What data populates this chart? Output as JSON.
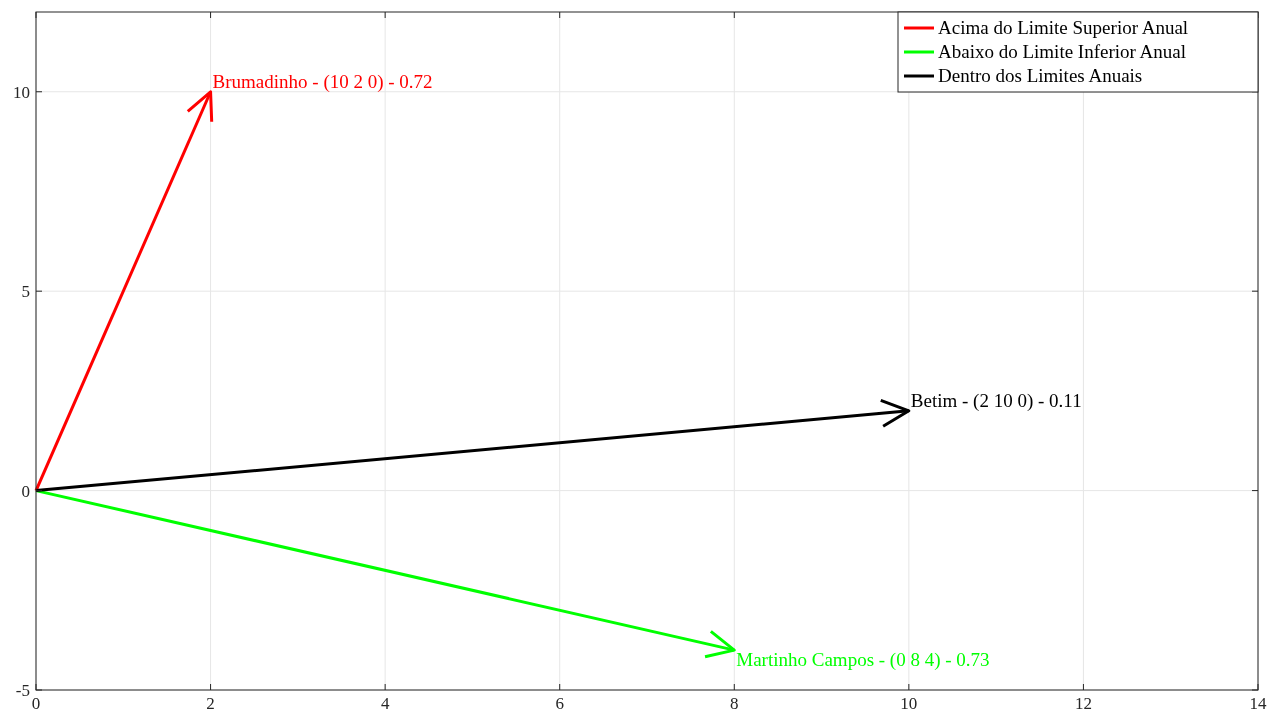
{
  "chart_data": {
    "type": "line",
    "xlim": [
      0,
      14
    ],
    "ylim": [
      -5,
      12
    ],
    "xticks": [
      0,
      2,
      4,
      6,
      8,
      10,
      12,
      14
    ],
    "yticks": [
      -5,
      0,
      5,
      10
    ],
    "grid": true,
    "legend": "top right",
    "marker": "none",
    "line_style": "solid",
    "series": [
      {
        "name": "Acima do Limite Superior Anual",
        "color": "#ff0000",
        "x": [
          0,
          2
        ],
        "values": [
          0,
          10
        ]
      },
      {
        "name": "Abaixo do Limite Inferior Anual",
        "color": "#00ff00",
        "x": [
          0,
          8
        ],
        "values": [
          0,
          -4
        ]
      },
      {
        "name": "Dentro dos Limites Anuais",
        "color": "#000000",
        "x": [
          0,
          10
        ],
        "values": [
          0,
          2
        ]
      }
    ],
    "annotations": [
      {
        "text": "Brumadinho - (10 2 0) - 0.72",
        "x": 2,
        "y": 10
      },
      {
        "text": "Martinho Campos - (0 8 4) - 0.73",
        "x": 8,
        "y": -4
      },
      {
        "text": "Betim - (2 10 0) - 0.11",
        "x": 10,
        "y": 2
      }
    ]
  }
}
